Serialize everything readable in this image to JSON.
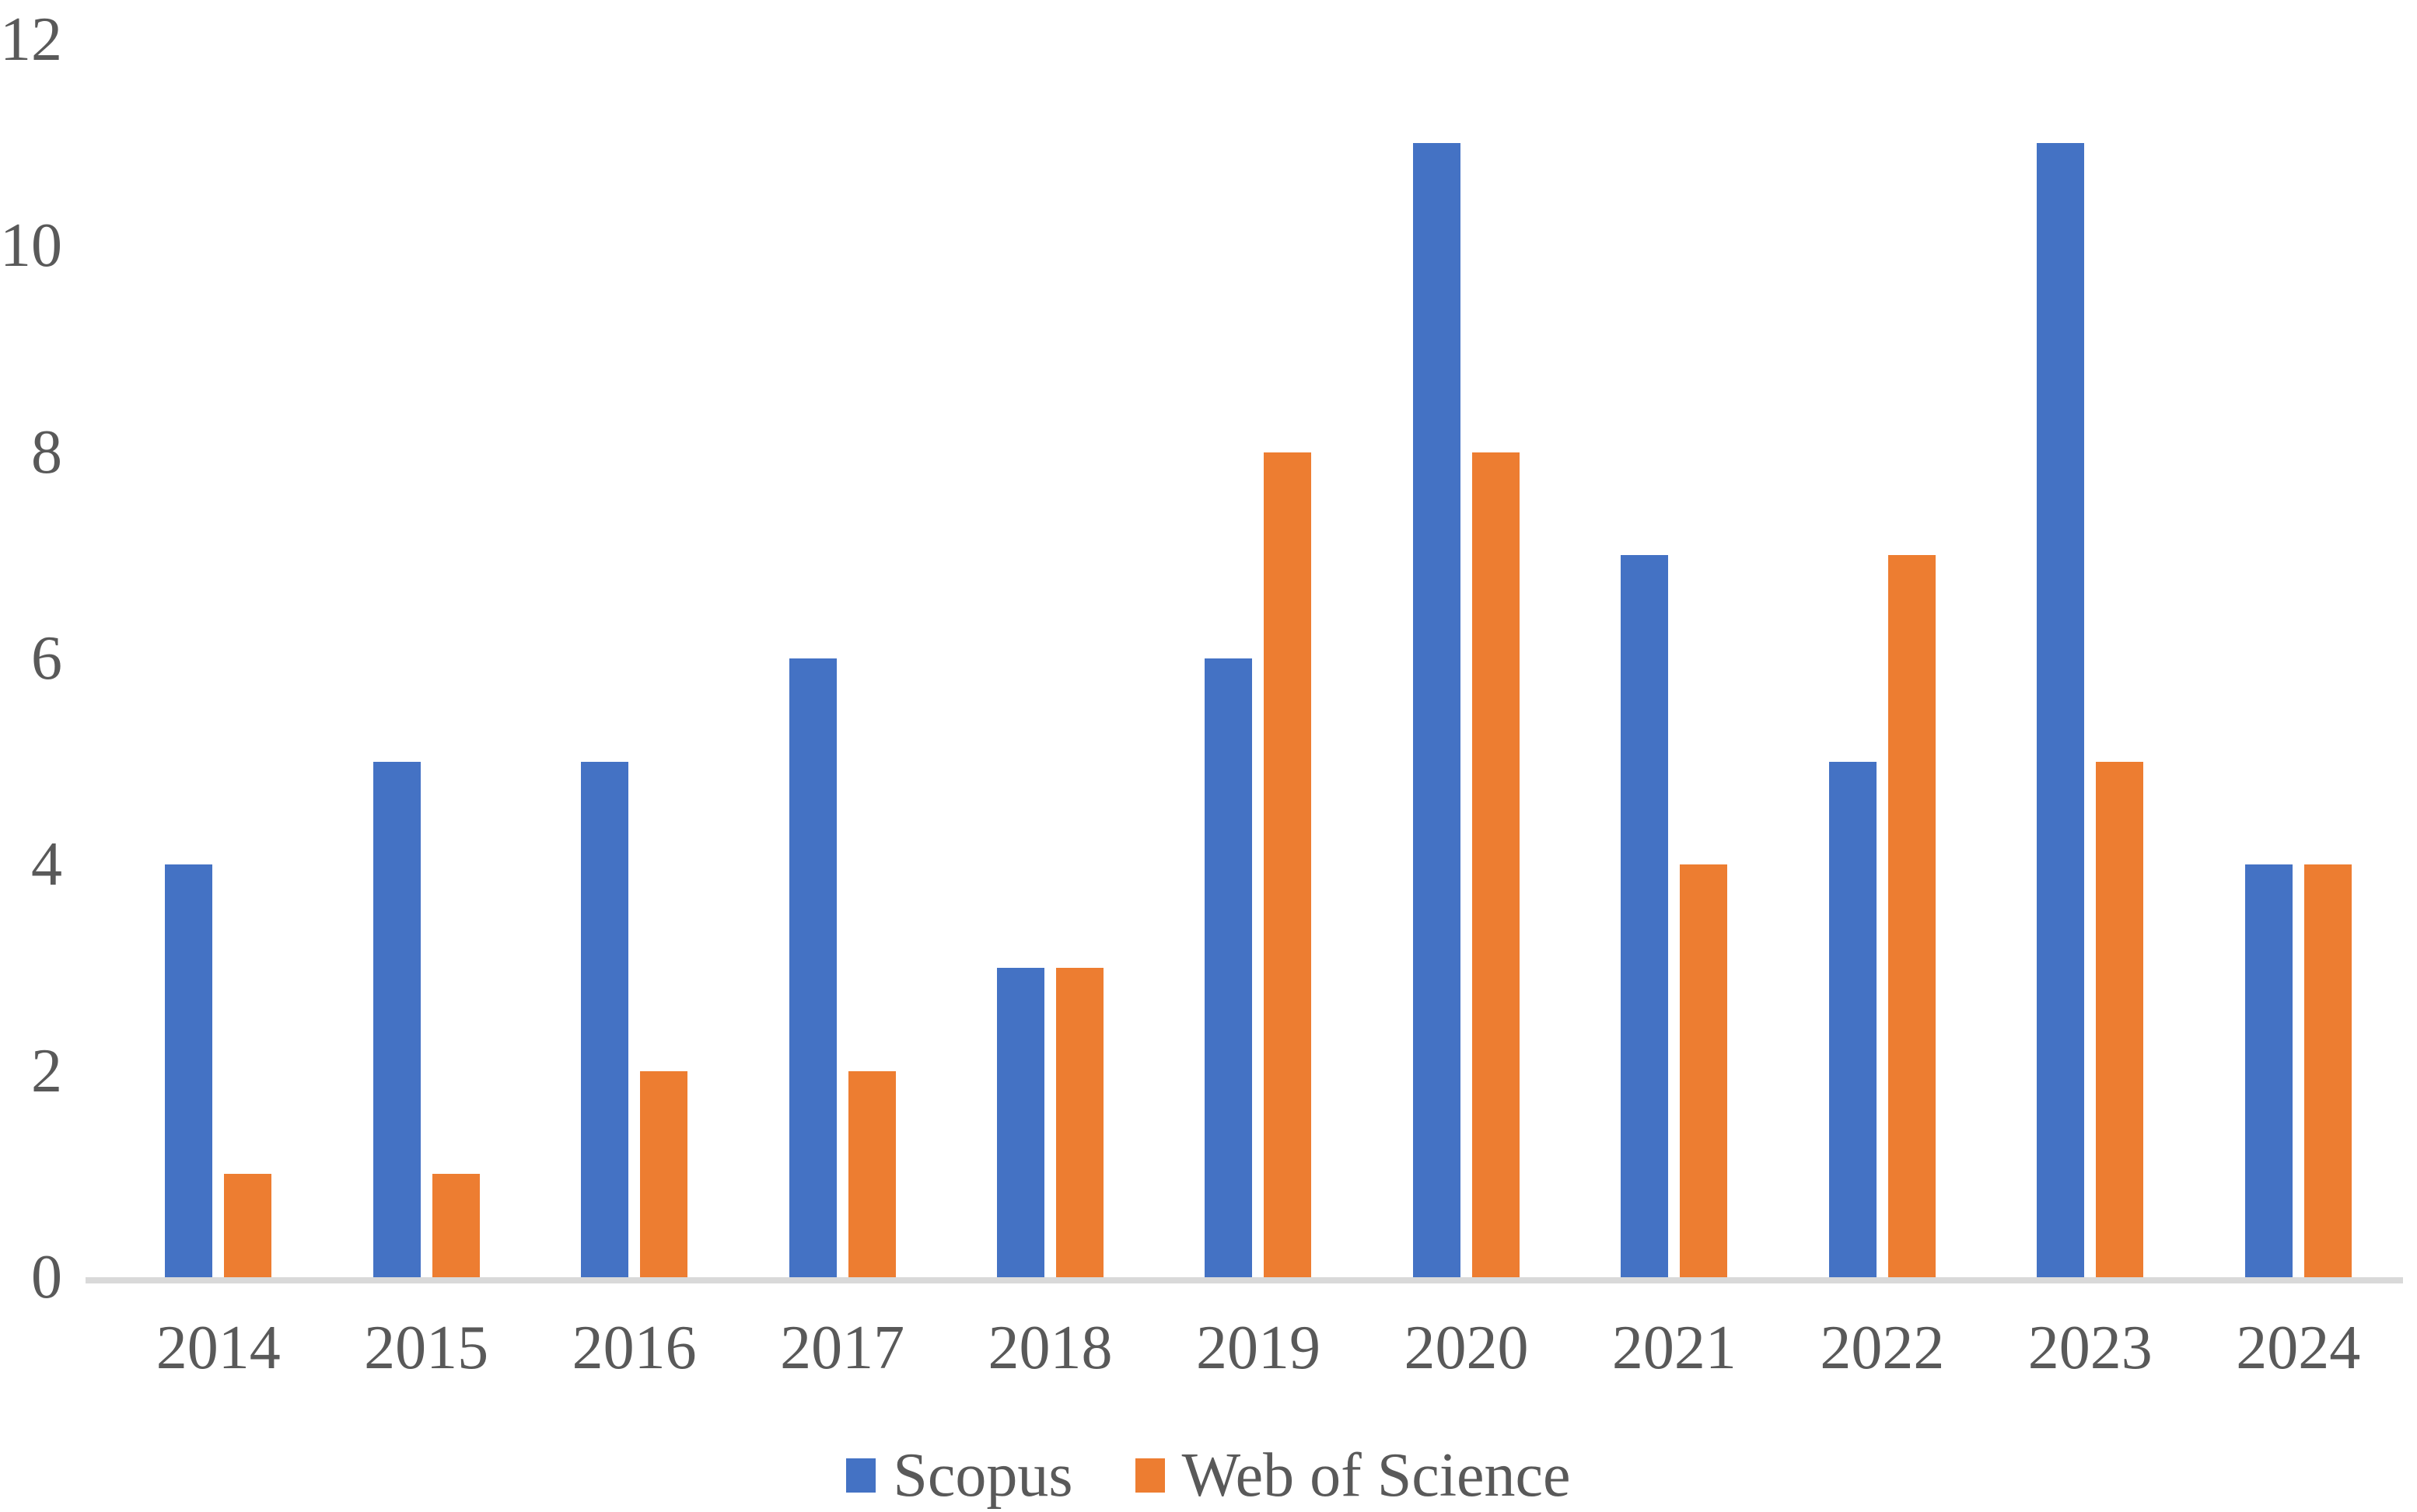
{
  "chart_data": {
    "type": "bar",
    "title": "",
    "xlabel": "",
    "ylabel": "",
    "categories": [
      "2014",
      "2015",
      "2016",
      "2017",
      "2018",
      "2019",
      "2020",
      "2021",
      "2022",
      "2023",
      "2024"
    ],
    "series": [
      {
        "name": "Scopus",
        "color": "#4472C4",
        "values": [
          4,
          5,
          5,
          6,
          3,
          6,
          11,
          7,
          5,
          11,
          4
        ]
      },
      {
        "name": "Web of Science",
        "color": "#ED7D31",
        "values": [
          1,
          1,
          2,
          2,
          3,
          8,
          8,
          4,
          7,
          5,
          4
        ]
      }
    ],
    "ylim": [
      0,
      12
    ],
    "yticks": [
      0,
      2,
      4,
      6,
      8,
      10,
      12
    ],
    "grid": false,
    "legend_position": "bottom"
  },
  "colors": {
    "axis_line": "#D9D9D9",
    "label_text": "#595959",
    "background": "#FFFFFF"
  }
}
